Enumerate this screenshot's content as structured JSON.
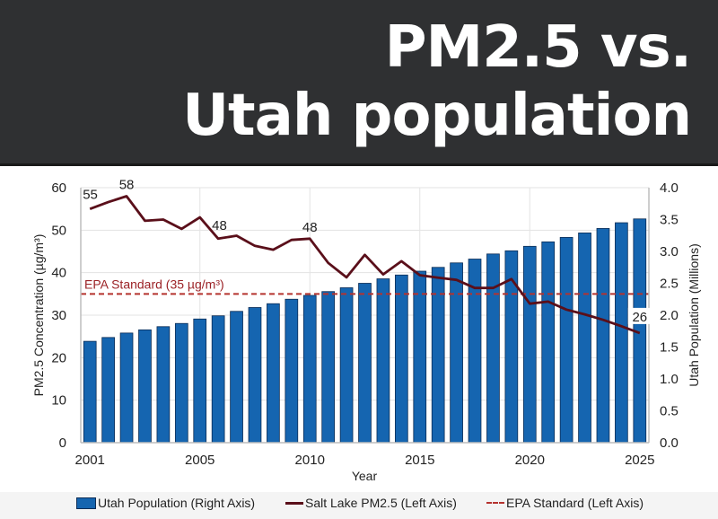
{
  "banner": {
    "line1": "PM2.5 vs.",
    "line2": "Utah population"
  },
  "chart_data": {
    "type": "bar+line",
    "title": "PM2.5 vs. Utah population",
    "xlabel": "Year",
    "ylabel_left": "PM2.5 Concentration (µg/m³)",
    "ylabel_right": "Utah Population (Millions)",
    "ylim_left": [
      0,
      60
    ],
    "ylim_right": [
      0,
      4.0
    ],
    "yticks_left": [
      "0",
      "10",
      "20",
      "30",
      "40",
      "50",
      "60"
    ],
    "yticks_right": [
      "0.0",
      "0.5",
      "1.0",
      "1.5",
      "2.0",
      "2.5",
      "3.0",
      "3.5",
      "4.0"
    ],
    "x_tick_labels": [
      {
        "index": 0,
        "label": "2001"
      },
      {
        "index": 6,
        "label": "2005"
      },
      {
        "index": 12,
        "label": "2010"
      },
      {
        "index": 18,
        "label": "2015"
      },
      {
        "index": 24,
        "label": "2020"
      },
      {
        "index": 30,
        "label": "2025"
      }
    ],
    "grid": true,
    "legend_position": "bottom",
    "series": [
      {
        "name": "Utah Population (Right Axis)",
        "type": "bar",
        "axis": "right",
        "color": "#1565b0",
        "values": [
          1.59,
          1.65,
          1.72,
          1.77,
          1.82,
          1.87,
          1.94,
          1.99,
          2.06,
          2.12,
          2.18,
          2.25,
          2.31,
          2.37,
          2.43,
          2.5,
          2.57,
          2.63,
          2.69,
          2.75,
          2.82,
          2.88,
          2.96,
          3.01,
          3.08,
          3.15,
          3.22,
          3.29,
          3.36,
          3.45,
          3.51
        ]
      },
      {
        "name": "Salt Lake PM2.5 (Left Axis)",
        "type": "line",
        "axis": "left",
        "color": "#5a0f1a",
        "values": [
          55,
          56.6,
          58,
          52.2,
          52.5,
          50.3,
          53.0,
          48.0,
          48.7,
          46.3,
          45.4,
          47.7,
          48.0,
          42.3,
          38.9,
          44.2,
          39.6,
          42.7,
          39.4,
          38.8,
          38.3,
          36.4,
          36.4,
          38.5,
          32.7,
          33.2,
          31.3,
          30.2,
          28.9,
          27.4,
          25.8
        ]
      },
      {
        "name": "EPA Standard (Left Axis)",
        "type": "line-dashed",
        "axis": "left",
        "color": "#b5332f",
        "value": 35
      }
    ],
    "annotations": [
      {
        "index": 0,
        "text": "55"
      },
      {
        "index": 2,
        "text": "58"
      },
      {
        "index": 7,
        "text": "48"
      },
      {
        "index": 12,
        "text": "48"
      },
      {
        "index": 30,
        "text": "26"
      },
      {
        "text": "EPA Standard (35 µg/m³)",
        "target": "epa-line"
      }
    ]
  },
  "legend": {
    "population": "Utah Population (Right Axis)",
    "pm25": "Salt Lake PM2.5 (Left Axis)",
    "epa": "EPA Standard (Left Axis)"
  }
}
